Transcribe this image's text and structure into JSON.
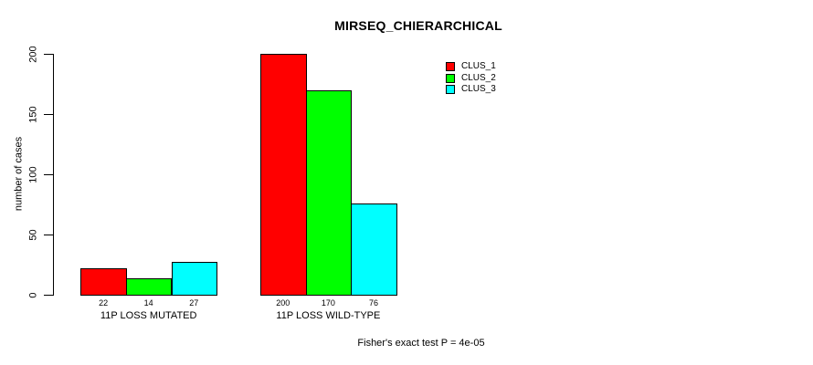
{
  "title": "MIRSEQ_CHIERARCHICAL",
  "footer": "Fisher's exact test P = 4e-05",
  "y_axis": {
    "label": "number of cases",
    "tick_labels": [
      "0",
      "50",
      "100",
      "150",
      "200"
    ]
  },
  "legend": {
    "entries": [
      {
        "label": "CLUS_1",
        "color": "#ff0000"
      },
      {
        "label": "CLUS_2",
        "color": "#00ff00"
      },
      {
        "label": "CLUS_3",
        "color": "#00ffff"
      }
    ]
  },
  "chart_data": {
    "type": "bar",
    "title": "MIRSEQ_CHIERARCHICAL",
    "ylabel": "number of cases",
    "xlabel": "",
    "categories": [
      "11P LOSS MUTATED",
      "11P LOSS WILD-TYPE"
    ],
    "series": [
      {
        "name": "CLUS_1",
        "color": "#ff0000",
        "values": [
          22,
          200
        ]
      },
      {
        "name": "CLUS_2",
        "color": "#00ff00",
        "values": [
          14,
          170
        ]
      },
      {
        "name": "CLUS_3",
        "color": "#00ffff",
        "values": [
          27,
          76
        ]
      }
    ],
    "bar_value_labels": [
      [
        "22",
        "14",
        "27"
      ],
      [
        "200",
        "170",
        "76"
      ]
    ],
    "ylim": [
      0,
      200
    ],
    "yticks": [
      0,
      50,
      100,
      150,
      200
    ],
    "grid": false,
    "legend_position": "top-right",
    "annotation": "Fisher's exact test P = 4e-05"
  }
}
